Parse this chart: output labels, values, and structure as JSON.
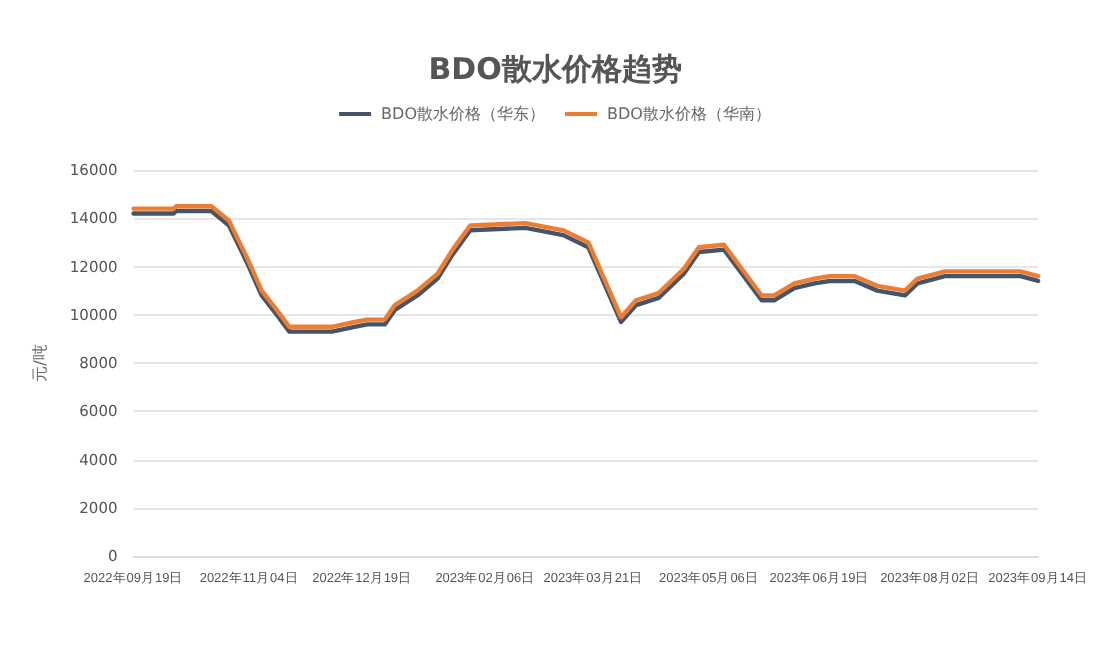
{
  "chart_data": {
    "type": "line",
    "title": "BDO散水价格趋势",
    "ylabel": "元/吨",
    "legend": "top",
    "grid": "y",
    "marker": "none",
    "line_style": "solid",
    "xlim": [
      "2022-09-19",
      "2023-09-14"
    ],
    "xticks": [
      {
        "value": "2022-09-19",
        "label": "2022年09月19日"
      },
      {
        "value": "2022-11-04",
        "label": "2022年11月04日"
      },
      {
        "value": "2022-12-19",
        "label": "2022年12月19日"
      },
      {
        "value": "2023-02-06",
        "label": "2023年02月06日"
      },
      {
        "value": "2023-03-21",
        "label": "2023年03月21日"
      },
      {
        "value": "2023-05-06",
        "label": "2023年05月06日"
      },
      {
        "value": "2023-06-19",
        "label": "2023年06月19日"
      },
      {
        "value": "2023-08-02",
        "label": "2023年08月02日"
      },
      {
        "value": "2023-09-14",
        "label": "2023年09月14日"
      }
    ],
    "ylim": [
      0,
      16000
    ],
    "yticks": [
      0,
      2000,
      4000,
      6000,
      8000,
      10000,
      12000,
      14000,
      16000
    ],
    "x": [
      "2022-09-19",
      "2022-10-05",
      "2022-10-06",
      "2022-10-20",
      "2022-10-27",
      "2022-11-03",
      "2022-11-09",
      "2022-11-15",
      "2022-11-20",
      "2022-12-07",
      "2022-12-16",
      "2022-12-21",
      "2022-12-28",
      "2023-01-01",
      "2023-01-10",
      "2023-01-18",
      "2023-01-24",
      "2023-01-31",
      "2023-02-22",
      "2023-03-09",
      "2023-03-19",
      "2023-04-01",
      "2023-04-07",
      "2023-04-16",
      "2023-04-26",
      "2023-05-02",
      "2023-05-12",
      "2023-05-27",
      "2023-06-01",
      "2023-06-09",
      "2023-06-17",
      "2023-06-23",
      "2023-07-03",
      "2023-07-12",
      "2023-07-23",
      "2023-07-28",
      "2023-08-08",
      "2023-09-07",
      "2023-09-14"
    ],
    "series": [
      {
        "name": "BDO散水价格（华东）",
        "color": "#44546a",
        "values": [
          14200,
          14200,
          14300,
          14300,
          13700,
          12200,
          10800,
          10000,
          9300,
          9300,
          9500,
          9600,
          9600,
          10200,
          10800,
          11500,
          12500,
          13500,
          13600,
          13300,
          12800,
          9700,
          10400,
          10700,
          11700,
          12600,
          12700,
          10600,
          10600,
          11100,
          11300,
          11400,
          11400,
          11000,
          10800,
          11300,
          11600,
          11600,
          11400
        ]
      },
      {
        "name": "BDO散水价格（华南）",
        "color": "#ed7d31",
        "values": [
          14400,
          14400,
          14500,
          14500,
          13900,
          12400,
          11000,
          10200,
          9500,
          9500,
          9700,
          9800,
          9800,
          10400,
          11000,
          11700,
          12700,
          13700,
          13800,
          13500,
          13000,
          9900,
          10600,
          10900,
          11900,
          12800,
          12900,
          10800,
          10800,
          11300,
          11500,
          11600,
          11600,
          11200,
          11000,
          11500,
          11800,
          11800,
          11600
        ]
      }
    ]
  }
}
